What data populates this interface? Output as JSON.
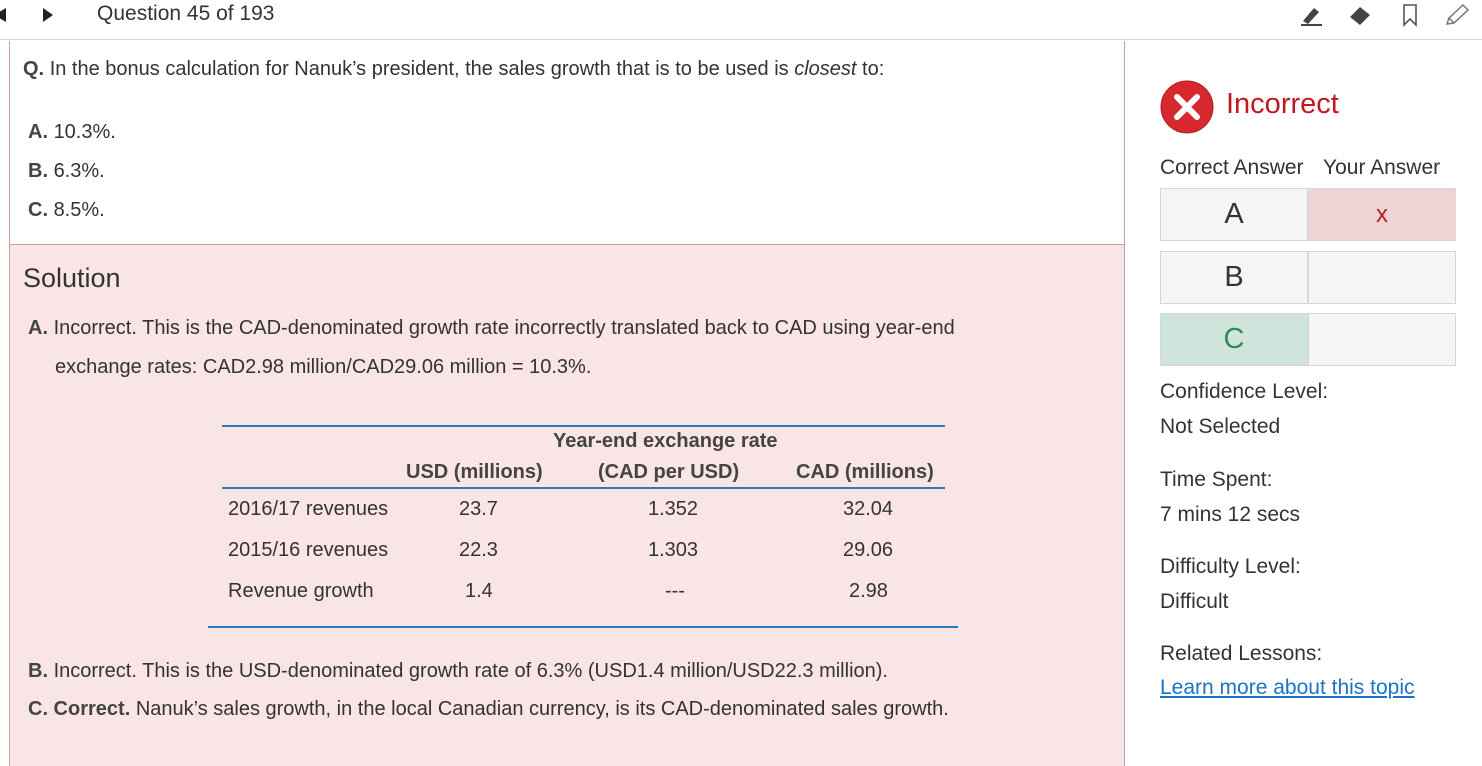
{
  "header": {
    "question_counter": "Question 45 of 193"
  },
  "toolbar": {
    "icons": [
      "highlighter-icon",
      "eraser-icon",
      "bookmark-icon",
      "pencil-icon"
    ]
  },
  "question": {
    "prefix": "Q.",
    "text_before": "In the bonus calculation for Nanuk’s president, the sales growth that is to be used is",
    "emphasis": "closest",
    "text_after": "to:",
    "options": [
      {
        "letter": "A.",
        "text": "10.3%."
      },
      {
        "letter": "B.",
        "text": "6.3%."
      },
      {
        "letter": "C.",
        "text": "8.5%."
      }
    ]
  },
  "solution": {
    "title": "Solution",
    "a_letter": "A.",
    "a_line1": "Incorrect. This is the CAD-denominated growth rate incorrectly translated back to CAD using year-end",
    "a_line2": "exchange rates: CAD2.98 million/CAD29.06 million = 10.3%.",
    "table": {
      "group_header": "Year-end exchange rate",
      "headers": [
        "USD (millions)",
        "(CAD per USD)",
        "CAD (millions)"
      ],
      "rows": [
        {
          "label": "2016/17 revenues",
          "usd": "23.7",
          "rate": "1.352",
          "cad": "32.04"
        },
        {
          "label": "2015/16 revenues",
          "usd": "22.3",
          "rate": "1.303",
          "cad": "29.06"
        },
        {
          "label": "Revenue growth",
          "usd": "1.4",
          "rate": "---",
          "cad": "2.98"
        }
      ]
    },
    "b_letter": "B.",
    "b_text": "Incorrect. This is the USD-denominated growth rate of 6.3% (USD1.4 million/USD22.3 million).",
    "c_letter": "C. Correct.",
    "c_text": "Nanuk’s sales growth, in the local Canadian currency, is its CAD-denominated sales growth."
  },
  "sidebar": {
    "result": "Incorrect",
    "result_color": "#c0191f",
    "correct_answer_label": "Correct Answer",
    "your_answer_label": "Your Answer",
    "answers": [
      {
        "letter": "A",
        "yours": "x"
      },
      {
        "letter": "B",
        "yours": ""
      },
      {
        "letter": "C",
        "yours": ""
      }
    ],
    "confidence_label": "Confidence Level:",
    "confidence_value": "Not Selected",
    "time_label": "Time Spent:",
    "time_value": "7 mins 12 secs",
    "difficulty_label": "Difficulty Level:",
    "difficulty_value": "Difficult",
    "related_label": "Related Lessons:",
    "related_link": "Learn more about this topic"
  }
}
